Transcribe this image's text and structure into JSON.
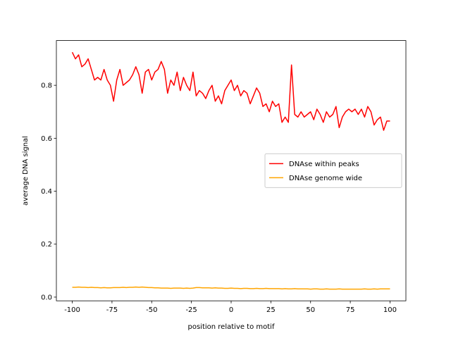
{
  "chart_data": {
    "type": "line",
    "xlabel": "position relative to motif",
    "ylabel": "average DNA signal",
    "x": [
      -100,
      -98,
      -96,
      -94,
      -92,
      -90,
      -88,
      -86,
      -84,
      -82,
      -80,
      -78,
      -76,
      -74,
      -72,
      -70,
      -68,
      -66,
      -64,
      -62,
      -60,
      -58,
      -56,
      -54,
      -52,
      -50,
      -48,
      -46,
      -44,
      -42,
      -40,
      -38,
      -36,
      -34,
      -32,
      -30,
      -28,
      -26,
      -24,
      -22,
      -20,
      -18,
      -16,
      -14,
      -12,
      -10,
      -8,
      -6,
      -4,
      -2,
      0,
      2,
      4,
      6,
      8,
      10,
      12,
      14,
      16,
      18,
      20,
      22,
      24,
      26,
      28,
      30,
      32,
      34,
      36,
      38,
      40,
      42,
      44,
      46,
      48,
      50,
      52,
      54,
      56,
      58,
      60,
      62,
      64,
      66,
      68,
      70,
      72,
      74,
      76,
      78,
      80,
      82,
      84,
      86,
      88,
      90,
      92,
      94,
      96,
      98,
      100
    ],
    "series": [
      {
        "name": "DNAse within peaks",
        "color": "#ff0000",
        "values": [
          0.925,
          0.9,
          0.915,
          0.87,
          0.88,
          0.9,
          0.86,
          0.82,
          0.83,
          0.82,
          0.86,
          0.82,
          0.8,
          0.74,
          0.82,
          0.86,
          0.8,
          0.81,
          0.82,
          0.84,
          0.87,
          0.84,
          0.77,
          0.85,
          0.86,
          0.82,
          0.85,
          0.86,
          0.89,
          0.86,
          0.77,
          0.82,
          0.8,
          0.85,
          0.78,
          0.83,
          0.8,
          0.78,
          0.85,
          0.76,
          0.78,
          0.77,
          0.75,
          0.78,
          0.8,
          0.74,
          0.76,
          0.73,
          0.78,
          0.8,
          0.82,
          0.78,
          0.8,
          0.76,
          0.78,
          0.77,
          0.73,
          0.76,
          0.79,
          0.77,
          0.72,
          0.73,
          0.7,
          0.74,
          0.72,
          0.73,
          0.66,
          0.68,
          0.66,
          0.877,
          0.69,
          0.68,
          0.7,
          0.68,
          0.69,
          0.7,
          0.67,
          0.71,
          0.69,
          0.66,
          0.7,
          0.68,
          0.69,
          0.72,
          0.64,
          0.68,
          0.7,
          0.71,
          0.7,
          0.71,
          0.69,
          0.71,
          0.68,
          0.72,
          0.7,
          0.65,
          0.67,
          0.68,
          0.63,
          0.665,
          0.665
        ]
      },
      {
        "name": "DNAse genome wide",
        "color": "#ffa500",
        "values": [
          0.037,
          0.037,
          0.038,
          0.037,
          0.037,
          0.036,
          0.037,
          0.036,
          0.036,
          0.035,
          0.036,
          0.035,
          0.035,
          0.036,
          0.036,
          0.036,
          0.037,
          0.036,
          0.037,
          0.037,
          0.038,
          0.037,
          0.038,
          0.037,
          0.036,
          0.036,
          0.035,
          0.035,
          0.034,
          0.034,
          0.034,
          0.033,
          0.034,
          0.034,
          0.034,
          0.033,
          0.034,
          0.033,
          0.034,
          0.036,
          0.036,
          0.035,
          0.035,
          0.035,
          0.034,
          0.035,
          0.034,
          0.034,
          0.033,
          0.033,
          0.034,
          0.033,
          0.033,
          0.032,
          0.033,
          0.033,
          0.032,
          0.032,
          0.033,
          0.032,
          0.032,
          0.033,
          0.032,
          0.032,
          0.032,
          0.032,
          0.031,
          0.032,
          0.031,
          0.031,
          0.032,
          0.031,
          0.031,
          0.031,
          0.031,
          0.03,
          0.031,
          0.031,
          0.03,
          0.03,
          0.031,
          0.03,
          0.03,
          0.03,
          0.031,
          0.03,
          0.03,
          0.03,
          0.03,
          0.03,
          0.03,
          0.03,
          0.031,
          0.03,
          0.03,
          0.031,
          0.03,
          0.031,
          0.031,
          0.031,
          0.031
        ]
      }
    ],
    "xlim": [
      -110,
      110
    ],
    "xticks": [
      -100,
      -75,
      -50,
      -25,
      0,
      25,
      50,
      75,
      100
    ],
    "ylim": [
      -0.014,
      0.969
    ],
    "yticks": [
      {
        "value": 0,
        "label": "0.0"
      },
      0.2,
      0.4,
      0.6,
      0.8
    ],
    "legend": "center right"
  }
}
